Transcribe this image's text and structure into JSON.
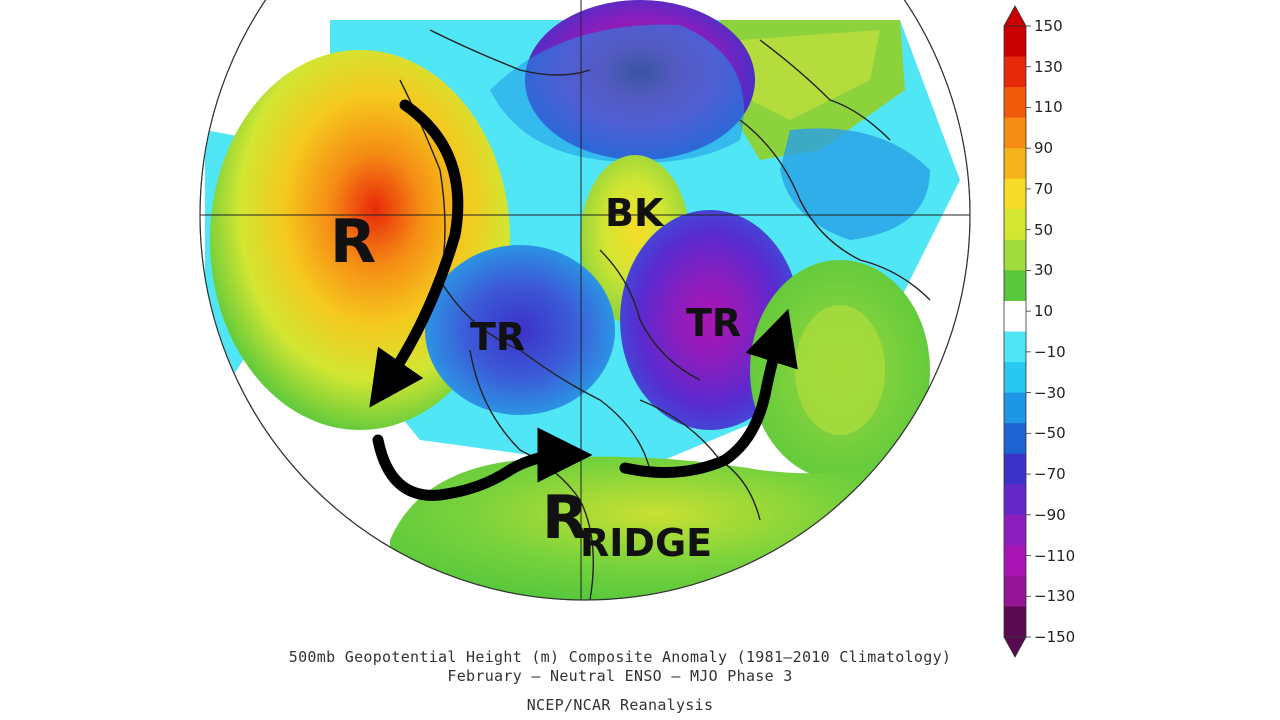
{
  "map": {
    "labels": {
      "ridge_west": "R",
      "block": "BK",
      "trough_west": "TR",
      "trough_east": "TR",
      "ridge_south": "R",
      "ridge_word": "RIDGE"
    }
  },
  "colorbar": {
    "ticks": [
      "150",
      "130",
      "110",
      "90",
      "70",
      "50",
      "30",
      "10",
      "−10",
      "−30",
      "−50",
      "−70",
      "−90",
      "−110",
      "−130",
      "−150"
    ],
    "colors": [
      "#c80000",
      "#e8280a",
      "#f05a0a",
      "#f58c14",
      "#f5b41e",
      "#f5dc28",
      "#d2e632",
      "#a0dc3c",
      "#5ac83c",
      "#ffffff",
      "#50e6f5",
      "#28c8f0",
      "#1e96e6",
      "#1e64d2",
      "#3c32c8",
      "#6428c8",
      "#8c1ebe",
      "#aa14b4",
      "#961496",
      "#5a0a50"
    ]
  },
  "caption": {
    "line1": "500mb Geopotential Height (m) Composite Anomaly (1981–2010 Climatology)",
    "line2": "February – Neutral ENSO – MJO Phase 3",
    "line3": "NCEP/NCAR Reanalysis"
  }
}
